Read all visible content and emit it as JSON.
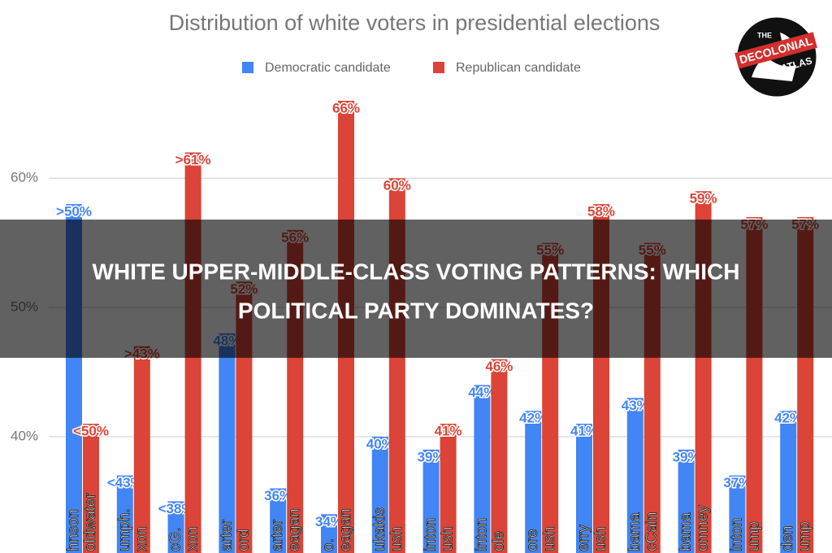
{
  "chart_data": {
    "type": "bar",
    "title": "Distribution of white voters in presidential elections",
    "categories": [
      [
        "hnson",
        "oldwater"
      ],
      [
        "umph.",
        "xon"
      ],
      [
        "cG.",
        "xon"
      ],
      [
        "arter",
        "ord"
      ],
      [
        "arter",
        "eagan"
      ],
      [
        "o.",
        "eagan"
      ],
      [
        "ukakis",
        "ush"
      ],
      [
        "inton",
        "ush"
      ],
      [
        "inton",
        "ole"
      ],
      [
        "ore",
        "ush"
      ],
      [
        "erry",
        "ush"
      ],
      [
        "bama",
        "cCain"
      ],
      [
        "bama",
        "omney"
      ],
      [
        "inton",
        "ump"
      ],
      [
        "den",
        "ump"
      ]
    ],
    "series": [
      {
        "name": "Democratic candidate",
        "color": "#4285f4",
        "values": [
          58,
          37,
          35,
          48,
          36,
          34,
          40,
          39,
          44,
          42,
          41,
          43,
          39,
          37,
          42
        ],
        "value_labels": [
          ">50%",
          "<43%",
          "<38%",
          "48%",
          "36%",
          "34%",
          "40%",
          "39%",
          "44%",
          "42%",
          "41%",
          "43%",
          "39%",
          "37%",
          "42%"
        ]
      },
      {
        "name": "Republican candidate",
        "color": "#db4437",
        "values": [
          41,
          47,
          62,
          52,
          56,
          66,
          60,
          41,
          46,
          55,
          58,
          55,
          59,
          57,
          57
        ],
        "value_labels": [
          "<50%",
          ">43%",
          ">61%",
          "52%",
          "56%",
          "66%",
          "60%",
          "41%",
          "46%",
          "55%",
          "58%",
          "55%",
          "59%",
          "57%",
          "57%"
        ]
      }
    ],
    "ylim": [
      31,
      73.8
    ],
    "yticks": [
      {
        "value": 40,
        "label": "40%"
      },
      {
        "value": 50,
        "label": "50%"
      },
      {
        "value": 60,
        "label": "60%"
      }
    ],
    "grid": true
  },
  "overlay": {
    "lines": [
      "WHITE UPPER-MIDDLE-CLASS VOTING PATTERNS: WHICH",
      "POLITICAL PARTY DOMINATES?"
    ]
  },
  "logo": {
    "top": "THE",
    "middle": "DECOLONIAL",
    "bottom": "ATLAS"
  }
}
